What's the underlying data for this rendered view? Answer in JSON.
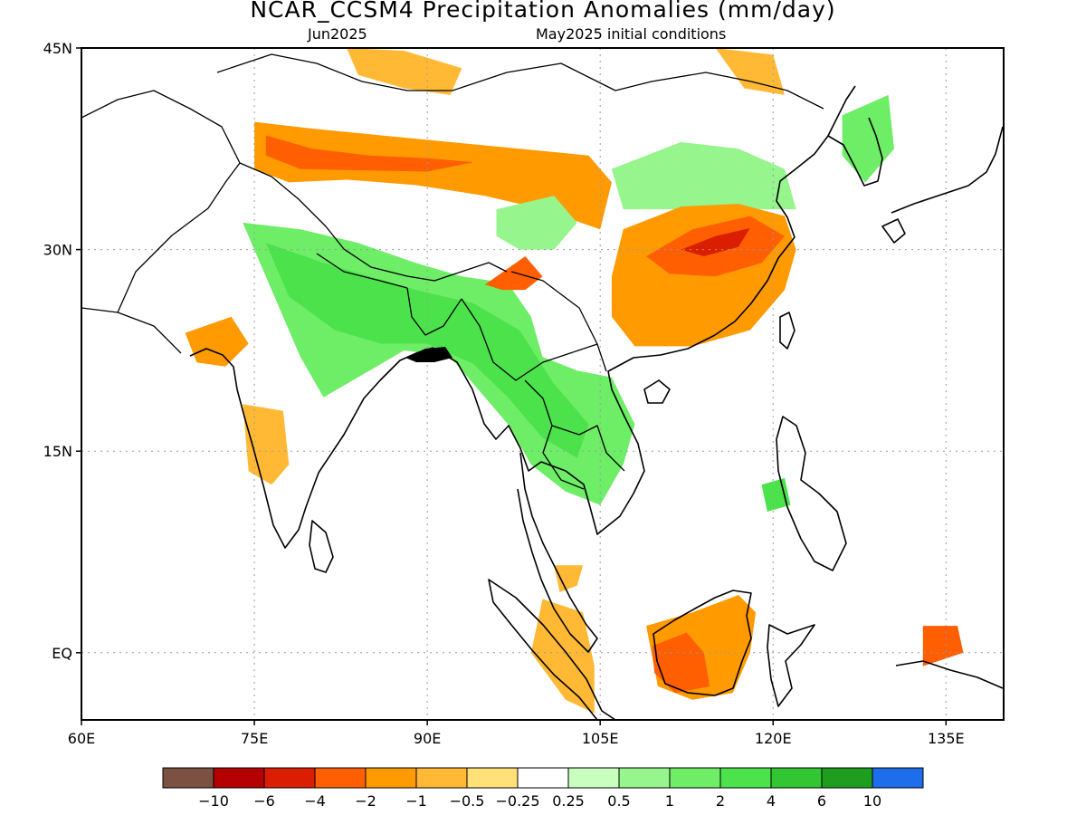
{
  "header": {
    "title": "NCAR_CCSM4 Precipitation Anomalies (mm/day)",
    "subtitle_left": "Jun2025",
    "subtitle_right": "May2025 initial conditions"
  },
  "map": {
    "lon_range": [
      60,
      140
    ],
    "lat_range": [
      -5,
      45
    ],
    "lon_ticks": [
      {
        "value": 60,
        "label": "60E"
      },
      {
        "value": 75,
        "label": "75E"
      },
      {
        "value": 90,
        "label": "90E"
      },
      {
        "value": 105,
        "label": "105E"
      },
      {
        "value": 120,
        "label": "120E"
      },
      {
        "value": 135,
        "label": "135E"
      }
    ],
    "lat_ticks": [
      {
        "value": 45,
        "label": "45N"
      },
      {
        "value": 30,
        "label": "30N"
      },
      {
        "value": 15,
        "label": "15N"
      },
      {
        "value": 0,
        "label": "EQ"
      }
    ],
    "grid": true
  },
  "colorbar": {
    "colors": [
      "#7a5142",
      "#b40000",
      "#dc1e00",
      "#ff5f00",
      "#ff9a00",
      "#ffb935",
      "#ffe178",
      "#ffffff",
      "#c8ffbe",
      "#96f58c",
      "#6eed66",
      "#4be24b",
      "#32c632",
      "#1e9e1e",
      "#1e6eeb"
    ],
    "labels": [
      "−10",
      "−6",
      "−4",
      "−2",
      "−1",
      "−0.5",
      "−0.25",
      "0.25",
      "0.5",
      "1",
      "2",
      "4",
      "6",
      "10"
    ]
  },
  "anomaly_regions": [
    {
      "name": "north-tibet-dry",
      "level": "-1",
      "points": [
        [
          75,
          39.5
        ],
        [
          80,
          39
        ],
        [
          86,
          38.5
        ],
        [
          92,
          38
        ],
        [
          98,
          37.5
        ],
        [
          104,
          37
        ],
        [
          106,
          35
        ],
        [
          105,
          31.5
        ],
        [
          100,
          33
        ],
        [
          95,
          34
        ],
        [
          89,
          34.8
        ],
        [
          83,
          35.2
        ],
        [
          78,
          35
        ],
        [
          75,
          36
        ]
      ]
    },
    {
      "name": "north-tibet-dry-core",
      "level": "-2",
      "points": [
        [
          76,
          38.5
        ],
        [
          80,
          37.5
        ],
        [
          85,
          37
        ],
        [
          90,
          36.8
        ],
        [
          94,
          36.5
        ],
        [
          90,
          35.8
        ],
        [
          84,
          35.9
        ],
        [
          79,
          36
        ],
        [
          76,
          37
        ]
      ]
    },
    {
      "name": "mongolia-dry",
      "level": "-0.5",
      "points": [
        [
          83,
          45
        ],
        [
          88,
          44.8
        ],
        [
          93,
          43.5
        ],
        [
          92,
          41.5
        ],
        [
          88,
          42
        ],
        [
          84,
          43
        ]
      ]
    },
    {
      "name": "north-china-wet",
      "level": "0.5",
      "points": [
        [
          106,
          36
        ],
        [
          112,
          38
        ],
        [
          117,
          37.5
        ],
        [
          121,
          36
        ],
        [
          122,
          33
        ],
        [
          118,
          33
        ],
        [
          112,
          33
        ],
        [
          107,
          33
        ]
      ]
    },
    {
      "name": "south-china-dry",
      "level": "-1",
      "points": [
        [
          107,
          31.5
        ],
        [
          112,
          33.2
        ],
        [
          117,
          33.4
        ],
        [
          121,
          32.5
        ],
        [
          122,
          30
        ],
        [
          121,
          27
        ],
        [
          118,
          24
        ],
        [
          113,
          22.8
        ],
        [
          108,
          22.8
        ],
        [
          106,
          25
        ],
        [
          106,
          28
        ]
      ]
    },
    {
      "name": "south-china-dry-core",
      "level": "-2",
      "points": [
        [
          109,
          29.5
        ],
        [
          113,
          31.5
        ],
        [
          118,
          32.5
        ],
        [
          121,
          31
        ],
        [
          119,
          29
        ],
        [
          115,
          28
        ],
        [
          111,
          28.2
        ]
      ]
    },
    {
      "name": "south-china-dry-inner",
      "level": "-4",
      "points": [
        [
          112,
          30
        ],
        [
          115,
          31
        ],
        [
          118,
          31.6
        ],
        [
          117,
          30.2
        ],
        [
          114,
          29.5
        ]
      ]
    },
    {
      "name": "himalaya-wet",
      "level": "1",
      "points": [
        [
          74,
          32
        ],
        [
          79,
          31.5
        ],
        [
          84,
          30.5
        ],
        [
          89,
          29
        ],
        [
          93,
          28
        ],
        [
          97,
          27.5
        ],
        [
          99,
          25
        ],
        [
          100,
          22
        ],
        [
          103,
          21
        ],
        [
          106,
          20.5
        ],
        [
          108,
          17
        ],
        [
          107,
          14
        ],
        [
          105,
          11
        ],
        [
          102,
          12
        ],
        [
          99,
          14
        ],
        [
          97,
          17
        ],
        [
          95,
          19
        ],
        [
          92,
          22
        ],
        [
          88,
          22.5
        ],
        [
          85,
          21
        ],
        [
          81,
          19
        ],
        [
          79,
          22
        ],
        [
          77,
          26
        ]
      ]
    },
    {
      "name": "himalaya-wet-core",
      "level": "2",
      "points": [
        [
          76,
          30.5
        ],
        [
          81,
          29
        ],
        [
          85,
          28
        ],
        [
          89,
          27
        ],
        [
          94,
          26
        ],
        [
          98,
          24
        ],
        [
          101,
          20
        ],
        [
          104,
          17
        ],
        [
          103,
          14.5
        ],
        [
          100,
          16
        ],
        [
          97,
          19
        ],
        [
          94,
          21.5
        ],
        [
          90,
          23
        ],
        [
          86,
          23
        ],
        [
          82,
          24
        ],
        [
          78,
          26.5
        ]
      ]
    },
    {
      "name": "sichuan-wet",
      "level": "0.5",
      "points": [
        [
          96,
          33
        ],
        [
          101,
          34
        ],
        [
          103,
          32
        ],
        [
          101,
          30
        ],
        [
          98,
          30
        ],
        [
          96,
          31
        ]
      ]
    },
    {
      "name": "east-himalaya-dry",
      "level": "-2",
      "points": [
        [
          95,
          27.4
        ],
        [
          98.5,
          29.5
        ],
        [
          100,
          28
        ],
        [
          98.5,
          27
        ],
        [
          96.5,
          27
        ]
      ]
    },
    {
      "name": "west-india-dry",
      "level": "-1",
      "points": [
        [
          69,
          23.8
        ],
        [
          73,
          25
        ],
        [
          74.5,
          23
        ],
        [
          72.5,
          21.3
        ],
        [
          70,
          21.6
        ]
      ]
    },
    {
      "name": "west-ghats-dry",
      "level": "-0.5",
      "points": [
        [
          74,
          18.5
        ],
        [
          77.5,
          18
        ],
        [
          78,
          14
        ],
        [
          76.5,
          12.5
        ],
        [
          74.5,
          13.5
        ]
      ]
    },
    {
      "name": "sumatra-dry",
      "level": "-0.5",
      "points": [
        [
          100,
          4
        ],
        [
          103.5,
          3
        ],
        [
          104.5,
          -1
        ],
        [
          104.5,
          -4.5
        ],
        [
          102,
          -3.5
        ],
        [
          99,
          0
        ]
      ]
    },
    {
      "name": "sumatra-dry-north",
      "level": "-0.5",
      "points": [
        [
          101,
          6.5
        ],
        [
          103.5,
          6.5
        ],
        [
          103,
          5
        ],
        [
          101.5,
          4.5
        ]
      ]
    },
    {
      "name": "borneo-dry",
      "level": "-1",
      "points": [
        [
          109,
          2
        ],
        [
          113,
          3
        ],
        [
          117,
          4.3
        ],
        [
          118.5,
          3
        ],
        [
          118,
          0
        ],
        [
          116.5,
          -3
        ],
        [
          113,
          -3.5
        ],
        [
          110,
          -2.5
        ]
      ]
    },
    {
      "name": "borneo-dry-core",
      "level": "-2",
      "points": [
        [
          109.5,
          0.5
        ],
        [
          112.5,
          1.5
        ],
        [
          114,
          0
        ],
        [
          114.5,
          -2.5
        ],
        [
          111.5,
          -3
        ],
        [
          109.7,
          -1.5
        ]
      ]
    },
    {
      "name": "korea-wet",
      "level": "1",
      "points": [
        [
          126,
          40
        ],
        [
          130,
          41.5
        ],
        [
          130.5,
          37.5
        ],
        [
          128,
          35
        ],
        [
          126,
          37
        ]
      ]
    },
    {
      "name": "northeast-china-dry",
      "level": "-0.5",
      "points": [
        [
          115,
          45
        ],
        [
          120,
          44.5
        ],
        [
          121,
          41.5
        ],
        [
          117.5,
          42
        ]
      ]
    },
    {
      "name": "png-dry",
      "level": "-2",
      "points": [
        [
          133,
          2
        ],
        [
          136,
          2
        ],
        [
          136.5,
          0
        ],
        [
          133,
          -1
        ]
      ]
    },
    {
      "name": "philippines-wet",
      "level": "2",
      "points": [
        [
          119,
          12.5
        ],
        [
          121,
          13
        ],
        [
          121.5,
          11
        ],
        [
          119.5,
          10.5
        ]
      ]
    }
  ]
}
